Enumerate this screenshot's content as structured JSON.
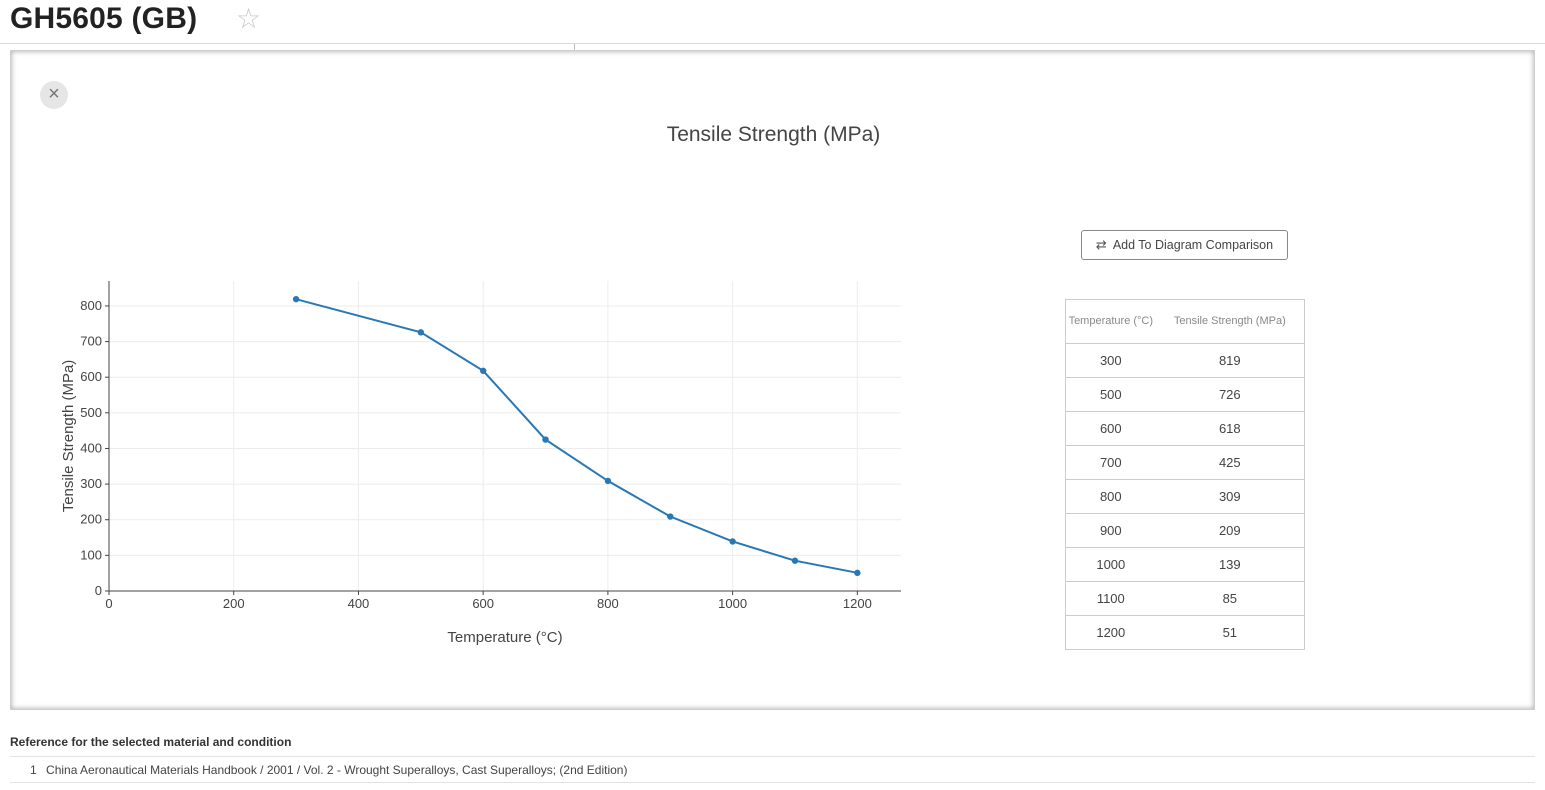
{
  "header": {
    "title": "GH5605 (GB)",
    "favorite_icon": "star-outline-icon"
  },
  "panel": {
    "close_icon": "close-icon",
    "close_glyph": "×"
  },
  "chart_data": {
    "type": "line",
    "title": "Tensile Strength (MPa)",
    "xlabel": "Temperature (°C)",
    "ylabel": "Tensile Strength (MPa)",
    "xlim": [
      0,
      1270
    ],
    "ylim": [
      0,
      870
    ],
    "xticks": [
      0,
      200,
      400,
      600,
      800,
      1000,
      1200
    ],
    "yticks": [
      0,
      100,
      200,
      300,
      400,
      500,
      600,
      700,
      800
    ],
    "grid": true,
    "color": "#2878b5",
    "series": [
      {
        "x": [
          300,
          500,
          600,
          700,
          800,
          900,
          1000,
          1100,
          1200
        ],
        "values": [
          819,
          726,
          618,
          425,
          309,
          209,
          139,
          85,
          51
        ]
      }
    ]
  },
  "compare_button": {
    "label": "Add To Diagram Comparison",
    "icon": "compare-arrows-icon"
  },
  "table": {
    "headers": [
      "Temperature (°C)",
      "Tensile Strength (MPa)"
    ],
    "rows": [
      [
        "300",
        "819"
      ],
      [
        "500",
        "726"
      ],
      [
        "600",
        "618"
      ],
      [
        "700",
        "425"
      ],
      [
        "800",
        "309"
      ],
      [
        "900",
        "209"
      ],
      [
        "1000",
        "139"
      ],
      [
        "1100",
        "85"
      ],
      [
        "1200",
        "51"
      ]
    ]
  },
  "references": {
    "heading": "Reference for the selected material and condition",
    "items": [
      {
        "number": "1",
        "text": "China Aeronautical Materials Handbook / 2001 / Vol. 2 - Wrought Superalloys, Cast Superalloys; (2nd Edition)"
      }
    ]
  }
}
